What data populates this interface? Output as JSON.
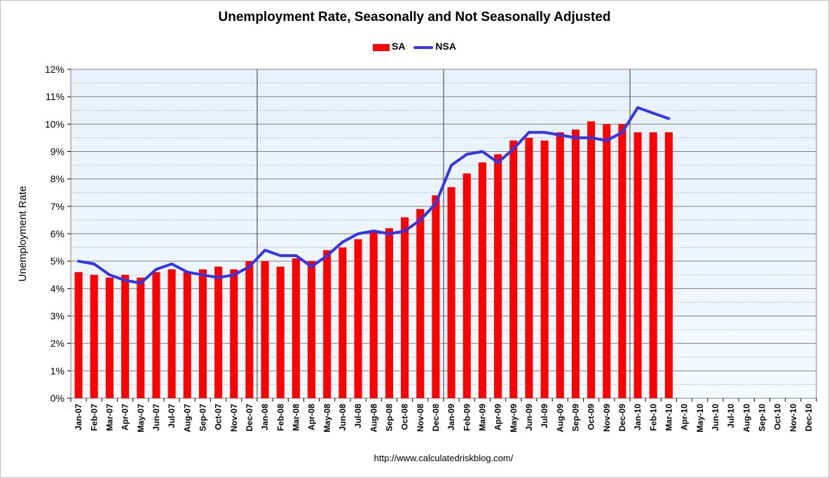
{
  "chart_data": {
    "type": "bar",
    "title": "Unemployment Rate, Seasonally and Not Seasonally Adjusted",
    "xlabel": "",
    "ylabel": "Unemployment Rate",
    "ylim": [
      0,
      12
    ],
    "y_ticks": [
      "0%",
      "1%",
      "2%",
      "3%",
      "4%",
      "5%",
      "6%",
      "7%",
      "8%",
      "9%",
      "10%",
      "11%",
      "12%"
    ],
    "categories": [
      "Jan-07",
      "Feb-07",
      "Mar-07",
      "Apr-07",
      "May-07",
      "Jun-07",
      "Jul-07",
      "Aug-07",
      "Sep-07",
      "Oct-07",
      "Nov-07",
      "Dec-07",
      "Jan-08",
      "Feb-08",
      "Mar-08",
      "Apr-08",
      "May-08",
      "Jun-08",
      "Jul-08",
      "Aug-08",
      "Sep-08",
      "Oct-08",
      "Nov-08",
      "Dec-08",
      "Jan-09",
      "Feb-09",
      "Mar-09",
      "Apr-09",
      "May-09",
      "Jun-09",
      "Jul-09",
      "Aug-09",
      "Sep-09",
      "Oct-09",
      "Nov-09",
      "Dec-09",
      "Jan-10",
      "Feb-10",
      "Mar-10",
      "Apr-10",
      "May-10",
      "Jun-10",
      "Jul-10",
      "Aug-10",
      "Sep-10",
      "Oct-10",
      "Nov-10",
      "Dec-10"
    ],
    "series": [
      {
        "name": "SA",
        "kind": "bar",
        "color": "#ff0000",
        "values": [
          4.6,
          4.5,
          4.4,
          4.5,
          4.4,
          4.6,
          4.7,
          4.6,
          4.7,
          4.8,
          4.7,
          5.0,
          5.0,
          4.8,
          5.1,
          5.0,
          5.4,
          5.5,
          5.8,
          6.1,
          6.2,
          6.6,
          6.9,
          7.4,
          7.7,
          8.2,
          8.6,
          8.9,
          9.4,
          9.5,
          9.4,
          9.7,
          9.8,
          10.1,
          10.0,
          10.0,
          9.7,
          9.7,
          9.7,
          null,
          null,
          null,
          null,
          null,
          null,
          null,
          null,
          null
        ]
      },
      {
        "name": "NSA",
        "kind": "line",
        "color": "#3535e6",
        "values": [
          5.0,
          4.9,
          4.5,
          4.3,
          4.2,
          4.7,
          4.9,
          4.6,
          4.5,
          4.4,
          4.5,
          4.8,
          5.4,
          5.2,
          5.2,
          4.8,
          5.2,
          5.7,
          6.0,
          6.1,
          6.0,
          6.1,
          6.5,
          7.1,
          8.5,
          8.9,
          9.0,
          8.6,
          9.1,
          9.7,
          9.7,
          9.6,
          9.5,
          9.5,
          9.4,
          9.7,
          10.6,
          10.4,
          10.2,
          null,
          null,
          null,
          null,
          null,
          null,
          null,
          null,
          null
        ]
      }
    ],
    "legend_position": "top-center",
    "grid": true
  },
  "footer": {
    "source": "http://www.calculatedriskblog.com/"
  }
}
